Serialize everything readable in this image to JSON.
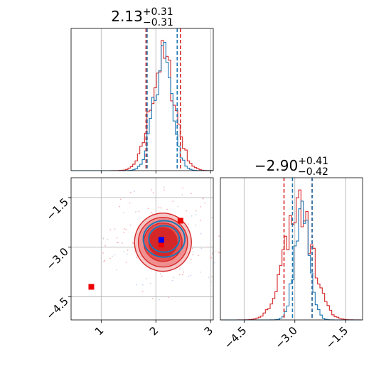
{
  "colors": {
    "primary": "#d62728",
    "secondary": "#1f77b4",
    "grid": "#b0b0b0",
    "marker_a": "#ee0000",
    "marker_b": "#0000ee"
  },
  "chart_data": [
    {
      "type": "histogram",
      "panel": "top-left",
      "title": {
        "value": "2.13",
        "plus": "+0.31",
        "minus": "−0.31"
      },
      "xlim": [
        0.45,
        3.05
      ],
      "x_ticks": [
        1,
        2,
        3
      ],
      "x_ticklabels_shown": false,
      "quantile_lines": {
        "red": [
          1.82,
          2.45
        ],
        "blue": [
          1.84,
          2.39
        ]
      },
      "distribution_estimates": {
        "red": {
          "mean": 2.13,
          "sd": 0.22
        },
        "blue": {
          "mean": 2.13,
          "sd": 0.17
        }
      }
    },
    {
      "type": "contour",
      "panel": "bottom-left",
      "xlim": [
        0.45,
        3.05
      ],
      "ylim": [
        -5.2,
        -0.9
      ],
      "x_ticks": [
        1,
        2,
        3
      ],
      "x_ticklabels": [
        "1",
        "2",
        "3"
      ],
      "y_ticks": [
        -1.5,
        -3.0,
        -4.5
      ],
      "y_ticklabels": [
        "−1.5",
        "−3.0",
        "−4.5"
      ],
      "red_contours": {
        "center": [
          2.13,
          -2.85
        ],
        "half_widths": [
          [
            0.52,
            0.88
          ],
          [
            0.45,
            0.75
          ],
          [
            0.35,
            0.58
          ],
          [
            0.26,
            0.44
          ]
        ]
      },
      "blue_contours": {
        "center": [
          2.15,
          -2.75
        ],
        "half_widths": [
          [
            0.38,
            0.55
          ],
          [
            0.28,
            0.4
          ]
        ]
      },
      "markers": [
        {
          "series": "red",
          "x": 0.82,
          "y": -4.2
        },
        {
          "series": "red",
          "x": 2.45,
          "y": -2.2
        },
        {
          "series": "red",
          "x": 2.1,
          "y": -2.92
        },
        {
          "series": "blue",
          "x": 2.1,
          "y": -2.78
        }
      ],
      "grid": true
    },
    {
      "type": "histogram",
      "panel": "bottom-right",
      "title": {
        "value": "−2.90",
        "plus": "+0.41",
        "minus": "−0.42"
      },
      "xlim": [
        -5.2,
        -1.0
      ],
      "x_ticks": [
        -4.5,
        -3.0,
        -1.5
      ],
      "x_ticklabels": [
        "−4.5",
        "−3.0",
        "−1.5"
      ],
      "quantile_lines": {
        "red": [
          -3.32,
          -2.49
        ],
        "blue": [
          -3.07,
          -2.49
        ]
      },
      "distribution_estimates": {
        "red": {
          "mean": -2.9,
          "sd": 0.42
        },
        "blue": {
          "mean": -2.78,
          "sd": 0.22
        }
      }
    }
  ]
}
